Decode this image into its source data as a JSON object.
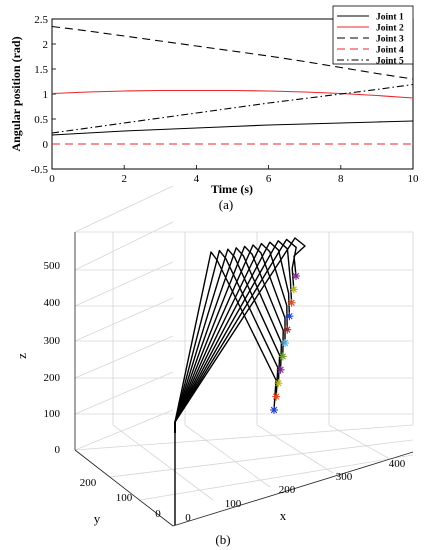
{
  "chart_data": [
    {
      "type": "line",
      "caption": "(a)",
      "xlabel": "Time (s)",
      "ylabel": "Angular position (rad)",
      "xlim": [
        0,
        10
      ],
      "ylim": [
        -0.5,
        2.5
      ],
      "xticks": [
        "0",
        "2",
        "4",
        "6",
        "8",
        "10"
      ],
      "yticks": [
        "-0.5",
        "0",
        "0.5",
        "1",
        "1.5",
        "2",
        "2.5"
      ],
      "legend_position": "top-right",
      "grid": false,
      "series": [
        {
          "name": "Joint 1",
          "color": "#000000",
          "dash": "solid",
          "x": [
            0,
            1,
            2,
            3,
            4,
            5,
            6,
            7,
            8,
            9,
            10
          ],
          "y": [
            0.18,
            0.22,
            0.26,
            0.29,
            0.32,
            0.35,
            0.38,
            0.4,
            0.42,
            0.44,
            0.46
          ]
        },
        {
          "name": "Joint 2",
          "color": "#e8262a",
          "dash": "solid",
          "x": [
            0,
            1,
            2,
            3,
            4,
            5,
            6,
            7,
            8,
            9,
            10
          ],
          "y": [
            1.01,
            1.04,
            1.06,
            1.07,
            1.07,
            1.07,
            1.06,
            1.04,
            1.01,
            0.97,
            0.92
          ]
        },
        {
          "name": "Joint 3",
          "color": "#000000",
          "dash": "8,5",
          "x": [
            0,
            1,
            2,
            3,
            4,
            5,
            6,
            7,
            8,
            9,
            10
          ],
          "y": [
            2.35,
            2.26,
            2.16,
            2.06,
            1.96,
            1.86,
            1.76,
            1.65,
            1.53,
            1.41,
            1.3
          ]
        },
        {
          "name": "Joint 4",
          "color": "#e8262a",
          "dash": "8,5",
          "x": [
            0,
            2,
            4,
            6,
            8,
            10
          ],
          "y": [
            0,
            0,
            0,
            0,
            0,
            0
          ]
        },
        {
          "name": "Joint 5",
          "color": "#000000",
          "dash": "7,3,1.5,3",
          "x": [
            0,
            1,
            2,
            3,
            4,
            5,
            6,
            7,
            8,
            9,
            10
          ],
          "y": [
            0.22,
            0.32,
            0.42,
            0.52,
            0.62,
            0.72,
            0.82,
            0.91,
            1.0,
            1.09,
            1.19
          ]
        }
      ]
    },
    {
      "type": "3d-line",
      "caption": "(b)",
      "xlabel": "x",
      "ylabel": "y",
      "zlabel": "z",
      "xticks": [
        "0",
        "100",
        "200",
        "300",
        "400"
      ],
      "yticks": [
        "0",
        "100",
        "200"
      ],
      "zticks": [
        "0",
        "100",
        "200",
        "300",
        "400",
        "500"
      ],
      "grid": true,
      "end_markers": "*",
      "marker_colors": [
        "#1f3fd0",
        "#d94d20",
        "#b6b61c",
        "#7a2a8a",
        "#6fa22e",
        "#4fb0e0",
        "#9a2a2a",
        "#1f3fd0",
        "#d94d20",
        "#b6b61c",
        "#7a2a8a"
      ]
    }
  ]
}
